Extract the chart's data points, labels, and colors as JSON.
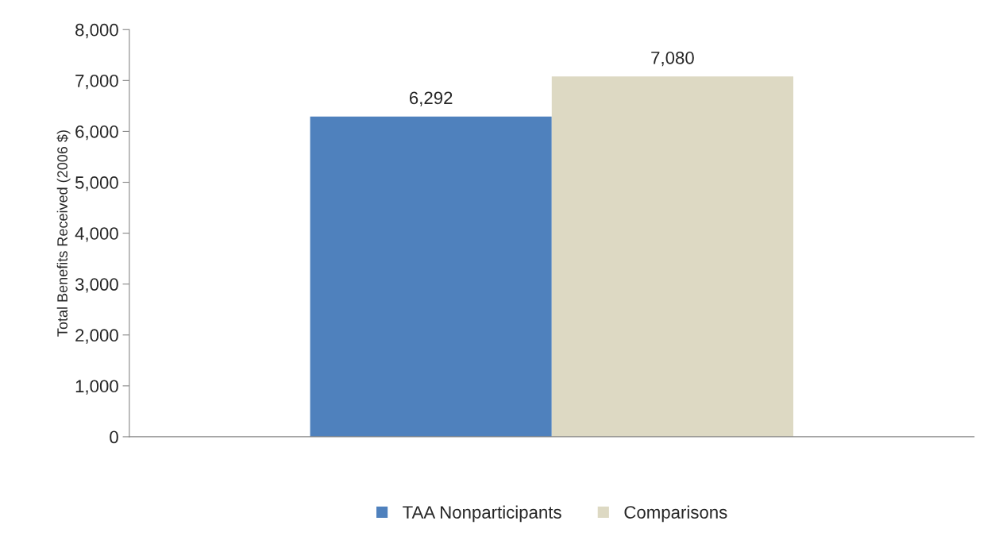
{
  "chart_data": {
    "type": "bar",
    "ylabel": "Total Benefits Received (2006 $)",
    "categories": [
      null
    ],
    "series": [
      {
        "name": "TAA Nonparticipants",
        "color": "#4f81bd",
        "values": [
          6292
        ],
        "value_labels": [
          "6,292"
        ]
      },
      {
        "name": "Comparisons",
        "color": "#ddd9c3",
        "values": [
          7080
        ],
        "value_labels": [
          "7,080"
        ]
      }
    ],
    "ylim": [
      0,
      8000
    ],
    "yticks": [
      {
        "value": 0,
        "label": "0"
      },
      {
        "value": 1000,
        "label": "1,000"
      },
      {
        "value": 2000,
        "label": "2,000"
      },
      {
        "value": 3000,
        "label": "3,000"
      },
      {
        "value": 4000,
        "label": "4,000"
      },
      {
        "value": 5000,
        "label": "5,000"
      },
      {
        "value": 6000,
        "label": "6,000"
      },
      {
        "value": 7000,
        "label": "7,000"
      },
      {
        "value": 8000,
        "label": "8,000"
      }
    ],
    "grid": false,
    "legend": "bottom"
  }
}
